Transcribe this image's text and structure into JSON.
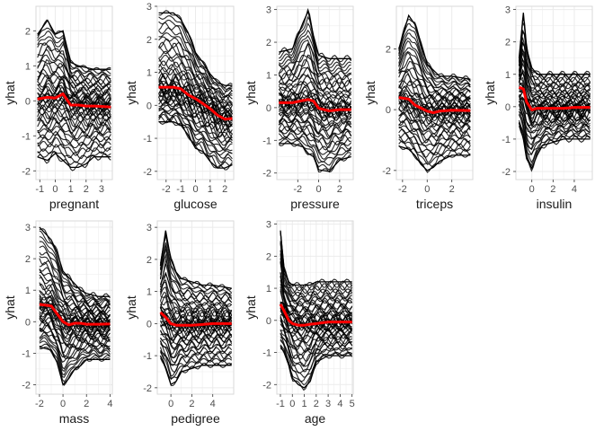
{
  "figure": {
    "panels_per_row": 5
  },
  "style": {
    "ice_color": "#000000",
    "pdp_color": "#ff0000",
    "grid_color": "#ebebeb",
    "panel_border_color": "#d9d9d9"
  },
  "chart_data": [
    {
      "type": "line",
      "xlabel": "pregnant",
      "ylabel": "yhat",
      "xlim": [
        -1.25,
        3.7
      ],
      "ylim": [
        -2.25,
        2.7
      ],
      "xticks": [
        -1,
        0,
        1,
        2,
        3
      ],
      "xtick_labels": [
        "-1",
        "0",
        "1",
        "2",
        "3"
      ],
      "yticks": [
        -2,
        -1,
        0,
        1,
        2
      ],
      "ytick_labels": [
        "-2",
        "-1",
        "0",
        "1",
        "2"
      ],
      "ice_band": {
        "x": [
          -1.15,
          -0.5,
          0.0,
          0.5,
          1.0,
          1.5,
          2.0,
          2.5,
          3.0,
          3.6
        ],
        "upper": [
          1.9,
          2.3,
          1.9,
          2.0,
          1.1,
          1.0,
          0.95,
          0.9,
          0.9,
          0.9
        ],
        "lower": [
          -1.6,
          -1.7,
          -1.5,
          -1.7,
          -1.9,
          -1.9,
          -1.8,
          -1.6,
          -1.6,
          -1.6
        ]
      },
      "pdp_line": {
        "x": [
          -1.15,
          -0.5,
          0.0,
          0.5,
          1.0,
          1.5,
          2.0,
          2.5,
          3.0,
          3.6
        ],
        "y": [
          0.05,
          0.1,
          0.08,
          0.2,
          -0.12,
          -0.12,
          -0.15,
          -0.15,
          -0.16,
          -0.18
        ]
      }
    },
    {
      "type": "line",
      "xlabel": "glucose",
      "ylabel": "yhat",
      "xlim": [
        -2.6,
        2.6
      ],
      "ylim": [
        -2.25,
        3.0
      ],
      "xticks": [
        -2,
        -1,
        0,
        1,
        2
      ],
      "xtick_labels": [
        "-2",
        "-1",
        "0",
        "1",
        "2"
      ],
      "yticks": [
        -2,
        -1,
        0,
        1,
        2,
        3
      ],
      "ytick_labels": [
        "-2",
        "-1",
        "0",
        "1",
        "2",
        "3"
      ],
      "ice_band": {
        "x": [
          -2.5,
          -1.5,
          -1.0,
          -0.5,
          0.0,
          0.5,
          1.0,
          1.5,
          2.0,
          2.5
        ],
        "upper": [
          2.8,
          2.8,
          2.6,
          2.2,
          1.6,
          1.3,
          0.95,
          0.7,
          0.6,
          0.6
        ],
        "lower": [
          -0.5,
          -0.5,
          -0.6,
          -0.9,
          -1.3,
          -1.4,
          -1.7,
          -1.9,
          -1.9,
          -1.8
        ]
      },
      "pdp_line": {
        "x": [
          -2.5,
          -1.5,
          -1.0,
          -0.5,
          0.0,
          0.5,
          1.0,
          1.5,
          2.0,
          2.5
        ],
        "y": [
          0.55,
          0.55,
          0.5,
          0.32,
          0.2,
          0.05,
          -0.1,
          -0.3,
          -0.42,
          -0.4
        ]
      }
    },
    {
      "type": "line",
      "xlabel": "pressure",
      "ylabel": "yhat",
      "xlim": [
        -4.0,
        3.3
      ],
      "ylim": [
        -2.2,
        3.1
      ],
      "xticks": [
        -2,
        0,
        2
      ],
      "xtick_labels": [
        "-2",
        "0",
        "2"
      ],
      "yticks": [
        -2,
        -1,
        0,
        1,
        2,
        3
      ],
      "ytick_labels": [
        "-2",
        "-1",
        "0",
        "1",
        "2",
        "3"
      ],
      "ice_band": {
        "x": [
          -3.8,
          -2.5,
          -1.5,
          -1.0,
          -0.5,
          0.0,
          1.0,
          2.0,
          3.1
        ],
        "upper": [
          1.7,
          1.8,
          2.6,
          2.95,
          2.2,
          1.6,
          1.5,
          1.5,
          1.5
        ],
        "lower": [
          -1.1,
          -1.1,
          -1.2,
          -1.4,
          -1.5,
          -1.9,
          -1.95,
          -1.6,
          -1.5
        ]
      },
      "pdp_line": {
        "x": [
          -3.8,
          -2.5,
          -1.5,
          -1.0,
          -0.5,
          0.0,
          1.0,
          2.0,
          3.1
        ],
        "y": [
          0.15,
          0.15,
          0.22,
          0.25,
          0.2,
          -0.02,
          -0.1,
          -0.06,
          -0.06
        ]
      }
    },
    {
      "type": "line",
      "xlabel": "triceps",
      "ylabel": "yhat",
      "xlim": [
        -2.5,
        3.7
      ],
      "ylim": [
        -2.3,
        3.4
      ],
      "xticks": [
        -2,
        0,
        2
      ],
      "xtick_labels": [
        "-2",
        "0",
        "2"
      ],
      "yticks": [
        -2,
        0,
        2
      ],
      "ytick_labels": [
        "-2",
        "0",
        "2"
      ],
      "ice_band": {
        "x": [
          -2.3,
          -1.5,
          -1.0,
          -0.5,
          0.0,
          0.5,
          1.0,
          2.0,
          3.5
        ],
        "upper": [
          2.0,
          3.1,
          2.8,
          2.2,
          1.5,
          1.3,
          1.1,
          1.1,
          1.0
        ],
        "lower": [
          -1.2,
          -1.3,
          -1.5,
          -1.8,
          -2.0,
          -1.9,
          -1.7,
          -1.5,
          -1.5
        ]
      },
      "pdp_line": {
        "x": [
          -2.3,
          -1.5,
          -1.0,
          -0.5,
          0.0,
          0.5,
          1.0,
          2.0,
          3.5
        ],
        "y": [
          0.4,
          0.35,
          0.15,
          0.05,
          -0.05,
          -0.1,
          -0.05,
          -0.02,
          -0.03
        ]
      }
    },
    {
      "type": "line",
      "xlabel": "insulin",
      "ylabel": "yhat",
      "xlim": [
        -1.5,
        5.7
      ],
      "ylim": [
        -2.25,
        3.1
      ],
      "xticks": [
        0,
        2,
        4
      ],
      "xtick_labels": [
        "0",
        "2",
        "4"
      ],
      "yticks": [
        -2,
        -1,
        0,
        1,
        2,
        3
      ],
      "ytick_labels": [
        "-2",
        "-1",
        "0",
        "1",
        "2",
        "3"
      ],
      "ice_band": {
        "x": [
          -1.2,
          -0.8,
          -0.5,
          0.0,
          0.5,
          1.0,
          2.0,
          3.0,
          4.0,
          5.5
        ],
        "upper": [
          1.5,
          2.9,
          1.8,
          1.2,
          1.0,
          1.0,
          1.0,
          1.0,
          1.0,
          1.0
        ],
        "lower": [
          -0.5,
          -1.0,
          -1.6,
          -1.9,
          -1.5,
          -1.2,
          -1.1,
          -1.0,
          -1.0,
          -1.0
        ]
      },
      "pdp_line": {
        "x": [
          -1.2,
          -0.8,
          -0.5,
          0.0,
          0.5,
          1.0,
          2.0,
          3.0,
          4.0,
          5.5
        ],
        "y": [
          0.6,
          0.55,
          0.15,
          -0.1,
          -0.05,
          -0.05,
          -0.05,
          -0.05,
          -0.02,
          -0.02
        ]
      }
    },
    {
      "type": "line",
      "xlabel": "mass",
      "ylabel": "yhat",
      "xlim": [
        -2.3,
        4.2
      ],
      "ylim": [
        -2.3,
        3.2
      ],
      "xticks": [
        -2,
        0,
        2,
        4
      ],
      "xtick_labels": [
        "-2",
        "0",
        "2",
        "4"
      ],
      "yticks": [
        -2,
        -1,
        0,
        1,
        2,
        3
      ],
      "ytick_labels": [
        "-2",
        "-1",
        "0",
        "1",
        "2",
        "3"
      ],
      "ice_band": {
        "x": [
          -2.0,
          -1.0,
          -0.5,
          0.0,
          0.5,
          1.0,
          1.5,
          2.0,
          3.0,
          4.0
        ],
        "upper": [
          3.0,
          2.6,
          2.2,
          1.6,
          1.4,
          1.2,
          1.0,
          0.9,
          0.8,
          0.8
        ],
        "lower": [
          -0.8,
          -0.9,
          -1.3,
          -2.0,
          -1.8,
          -1.5,
          -1.4,
          -1.2,
          -1.2,
          -1.2
        ]
      },
      "pdp_line": {
        "x": [
          -2.0,
          -1.0,
          -0.5,
          0.0,
          0.5,
          1.0,
          1.5,
          2.0,
          3.0,
          4.0
        ],
        "y": [
          0.55,
          0.5,
          0.25,
          0.0,
          -0.1,
          -0.05,
          -0.05,
          -0.08,
          -0.08,
          -0.07
        ]
      }
    },
    {
      "type": "line",
      "xlabel": "pedigree",
      "ylabel": "yhat",
      "xlim": [
        -1.3,
        6.0
      ],
      "ylim": [
        -2.2,
        3.2
      ],
      "xticks": [
        0,
        2,
        4
      ],
      "xtick_labels": [
        "0",
        "2",
        "4"
      ],
      "yticks": [
        -2,
        -1,
        0,
        1,
        2,
        3
      ],
      "ytick_labels": [
        "-2",
        "-1",
        "0",
        "1",
        "2",
        "3"
      ],
      "ice_band": {
        "x": [
          -1.0,
          -0.5,
          0.0,
          0.5,
          1.0,
          2.0,
          3.0,
          4.0,
          5.8
        ],
        "upper": [
          1.8,
          2.9,
          2.0,
          1.6,
          1.4,
          1.3,
          1.2,
          1.2,
          1.1
        ],
        "lower": [
          -1.0,
          -1.4,
          -1.9,
          -1.8,
          -1.5,
          -1.4,
          -1.3,
          -1.3,
          -1.3
        ]
      },
      "pdp_line": {
        "x": [
          -1.0,
          -0.5,
          0.0,
          0.5,
          1.0,
          2.0,
          3.0,
          4.0,
          5.8
        ],
        "y": [
          0.35,
          0.2,
          0.0,
          -0.05,
          -0.05,
          -0.05,
          -0.03,
          0.0,
          0.0
        ]
      }
    },
    {
      "type": "line",
      "xlabel": "age",
      "ylabel": "yhat",
      "xlim": [
        -1.3,
        5.1
      ],
      "ylim": [
        -2.3,
        3.1
      ],
      "xticks": [
        -1,
        0,
        1,
        2,
        3,
        4,
        5
      ],
      "xtick_labels": [
        "-1",
        "0",
        "1",
        "2",
        "3",
        "4",
        "5"
      ],
      "yticks": [
        -2,
        -1,
        0,
        1,
        2,
        3
      ],
      "ytick_labels": [
        "-2",
        "-1",
        "0",
        "1",
        "2",
        "3"
      ],
      "ice_band": {
        "x": [
          -1.0,
          -0.7,
          -0.3,
          0.0,
          0.5,
          1.0,
          1.5,
          2.0,
          3.0,
          4.0,
          5.0
        ],
        "upper": [
          2.8,
          1.6,
          1.2,
          1.1,
          1.1,
          1.1,
          1.1,
          1.2,
          1.2,
          1.2,
          1.2
        ],
        "lower": [
          -0.8,
          -1.0,
          -1.4,
          -1.8,
          -2.0,
          -2.1,
          -1.9,
          -1.3,
          -1.1,
          -1.1,
          -1.1
        ]
      },
      "pdp_line": {
        "x": [
          -1.0,
          -0.7,
          -0.3,
          0.0,
          0.5,
          1.0,
          1.5,
          2.0,
          3.0,
          4.0,
          5.0
        ],
        "y": [
          0.5,
          0.3,
          0.0,
          -0.1,
          -0.15,
          -0.15,
          -0.12,
          -0.1,
          -0.05,
          -0.05,
          -0.05
        ]
      }
    }
  ]
}
